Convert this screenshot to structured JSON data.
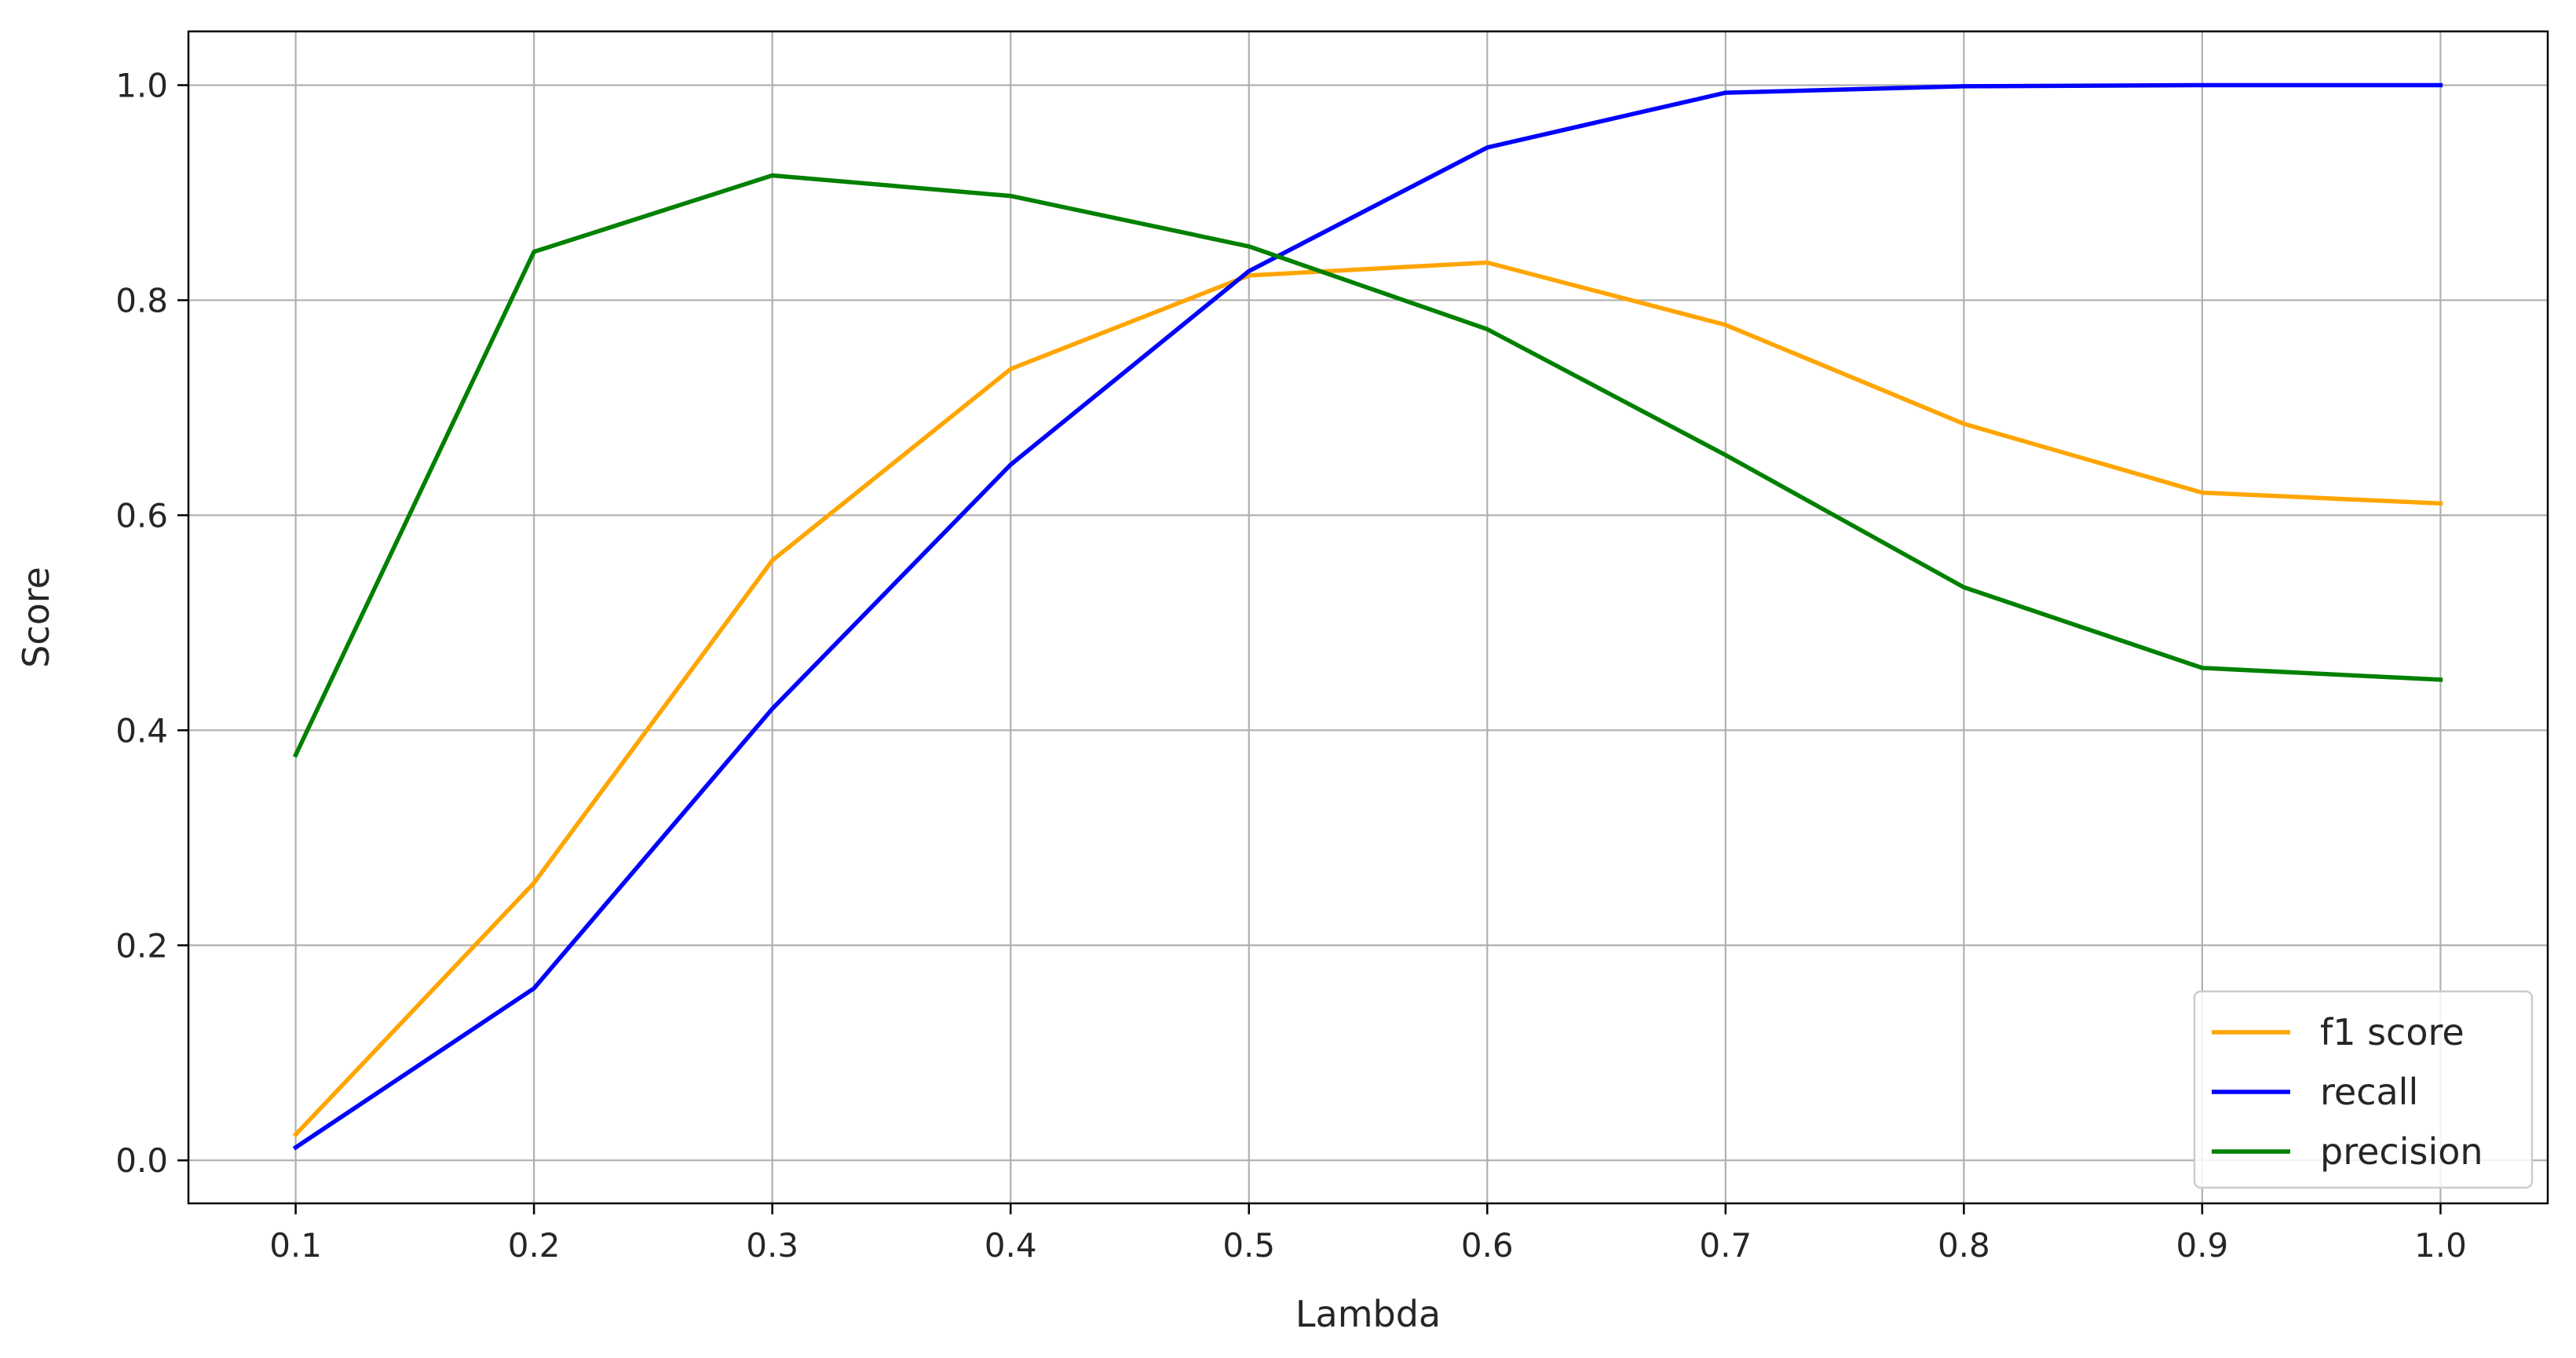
{
  "chart_data": {
    "type": "line",
    "title": "",
    "xlabel": "Lambda",
    "ylabel": "Score",
    "x": [
      0.1,
      0.2,
      0.3,
      0.4,
      0.5,
      0.6,
      0.7,
      0.8,
      0.9,
      1.0
    ],
    "x_tick_labels": [
      "0.1",
      "0.2",
      "0.3",
      "0.4",
      "0.5",
      "0.6",
      "0.7",
      "0.8",
      "0.9",
      "1.0"
    ],
    "xlim": [
      0.055,
      1.045
    ],
    "y_ticks": [
      0.0,
      0.2,
      0.4,
      0.6,
      0.8,
      1.0
    ],
    "y_tick_labels": [
      "0.0",
      "0.2",
      "0.4",
      "0.6",
      "0.8",
      "1.0"
    ],
    "ylim": [
      -0.04,
      1.05
    ],
    "grid": true,
    "legend_position": "lower-right",
    "series": [
      {
        "name": "f1 score",
        "color": "#FFA500",
        "values": [
          0.024,
          0.258,
          0.558,
          0.736,
          0.823,
          0.835,
          0.777,
          0.685,
          0.621,
          0.611
        ]
      },
      {
        "name": "recall",
        "color": "#0000FF",
        "values": [
          0.012,
          0.16,
          0.42,
          0.647,
          0.827,
          0.942,
          0.993,
          0.999,
          1.0,
          1.0
        ]
      },
      {
        "name": "precision",
        "color": "#008000",
        "values": [
          0.377,
          0.845,
          0.916,
          0.897,
          0.85,
          0.773,
          0.656,
          0.533,
          0.458,
          0.447
        ]
      }
    ]
  }
}
